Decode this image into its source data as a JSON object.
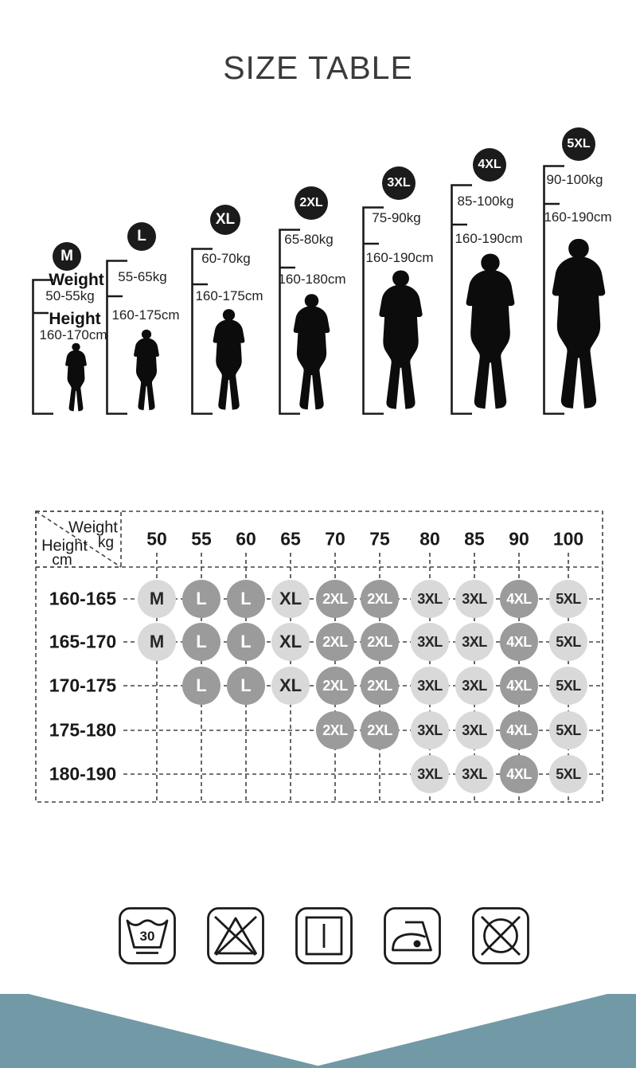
{
  "title": "SIZE TABLE",
  "figures": [
    {
      "size": "M",
      "weight_label": "Weight",
      "height_label": "Height",
      "weight": "50-55kg",
      "height": "160-170cm"
    },
    {
      "size": "L",
      "weight": "55-65kg",
      "height": "160-175cm"
    },
    {
      "size": "XL",
      "weight": "60-70kg",
      "height": "160-175cm"
    },
    {
      "size": "2XL",
      "weight": "65-80kg",
      "height": "160-180cm"
    },
    {
      "size": "3XL",
      "weight": "75-90kg",
      "height": "160-190cm"
    },
    {
      "size": "4XL",
      "weight": "85-100kg",
      "height": "160-190cm"
    },
    {
      "size": "5XL",
      "weight": "90-100kg",
      "height": "160-190cm"
    }
  ],
  "size_chart": {
    "corner": {
      "top_label": "Weight",
      "top_unit": "kg",
      "side_label": "Height",
      "side_unit": "cm"
    },
    "weight_columns": [
      "50",
      "55",
      "60",
      "65",
      "70",
      "75",
      "80",
      "85",
      "90",
      "100"
    ],
    "height_rows": [
      "160-165",
      "165-170",
      "170-175",
      "175-180",
      "180-190"
    ],
    "cells": [
      [
        "M",
        "L",
        "L",
        "XL",
        "2XL",
        "2XL",
        "3XL",
        "3XL",
        "4XL",
        "5XL"
      ],
      [
        "M",
        "L",
        "L",
        "XL",
        "2XL",
        "2XL",
        "3XL",
        "3XL",
        "4XL",
        "5XL"
      ],
      [
        "",
        "L",
        "L",
        "XL",
        "2XL",
        "2XL",
        "3XL",
        "3XL",
        "4XL",
        "5XL"
      ],
      [
        "",
        "",
        "",
        "",
        "2XL",
        "2XL",
        "3XL",
        "3XL",
        "4XL",
        "5XL"
      ],
      [
        "",
        "",
        "",
        "",
        "",
        "",
        "3XL",
        "3XL",
        "4XL",
        "5XL"
      ]
    ],
    "light_sizes": [
      "M",
      "XL",
      "3XL",
      "5XL"
    ],
    "dark_sizes": [
      "L",
      "2XL",
      "4XL"
    ]
  },
  "care_icons": [
    {
      "name": "wash-30-icon",
      "label": "30"
    },
    {
      "name": "do-not-bleach-icon",
      "label": ""
    },
    {
      "name": "drip-dry-icon",
      "label": ""
    },
    {
      "name": "iron-one-dot-icon",
      "label": ""
    },
    {
      "name": "do-not-tumble-dry-icon",
      "label": ""
    }
  ],
  "colors": {
    "badge_black": "#1b1b1b",
    "circle_light": "#d9d9d9",
    "circle_light_text": "#262626",
    "circle_dark": "#9b9b9b",
    "circle_dark_text": "#ffffff",
    "dash_line": "#434343",
    "icon_stroke": "#1a1a1a",
    "footer_teal": "#7299a6"
  }
}
